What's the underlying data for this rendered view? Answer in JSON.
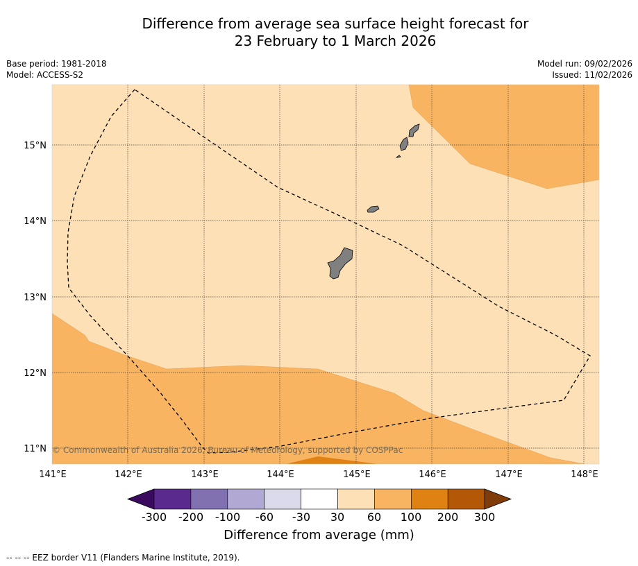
{
  "title": {
    "line1": "Difference from average sea surface height forecast for",
    "line2": "23 February to 1 March 2026"
  },
  "meta_left": {
    "base_period": "Base period: 1981-2018",
    "model": "Model: ACCESS-S2"
  },
  "meta_right": {
    "model_run": "Model run: 09/02/2026",
    "issued": "Issued: 11/02/2026"
  },
  "map": {
    "copyright": "© Commonwealth of Australia 2026, Bureau of Meteorology, supported by COSPPac",
    "lon_labels": [
      "141°E",
      "142°E",
      "143°E",
      "144°E",
      "145°E",
      "146°E",
      "147°E",
      "148°E"
    ],
    "lat_labels": [
      "15°N",
      "14°N",
      "13°N",
      "12°N",
      "11°N"
    ]
  },
  "colorbar": {
    "title": "Difference from average (mm)",
    "tick_labels": [
      "-300",
      "-200",
      "-100",
      "-60",
      "-30",
      "30",
      "60",
      "100",
      "200",
      "300"
    ],
    "colors": [
      "#3a0a5e",
      "#5a2a8e",
      "#8271b1",
      "#b1a8d3",
      "#dadaeb",
      "#ffffff",
      "#fde0b6",
      "#f9b462",
      "#e08113",
      "#b35807",
      "#7f3b08"
    ]
  },
  "footer": "-- -- -- EEZ border V11 (Flanders Marine Institute, 2019)."
}
